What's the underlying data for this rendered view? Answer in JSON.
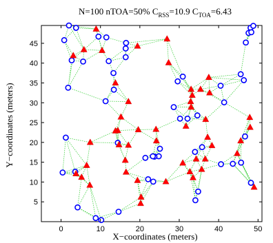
{
  "chart_data": {
    "type": "scatter",
    "title": {
      "prefix": "N=100 nTOA=50% C",
      "sub1": "RSS",
      "mid": "=10.9 C",
      "sub2": "TOA",
      "suffix": "=6.43"
    },
    "xlabel": "X−coordinates (meters)",
    "ylabel": "Y−coordinates (meters)",
    "xlim": [
      -5,
      51
    ],
    "ylim": [
      0,
      49.5
    ],
    "xticks": [
      0,
      10,
      20,
      30,
      40,
      50
    ],
    "yticks": [
      5,
      10,
      15,
      20,
      25,
      30,
      35,
      40,
      45
    ],
    "grid": false,
    "colors": {
      "unknown": "#0000ff",
      "anchor": "#ff0000",
      "edge": "#33cc33"
    },
    "series": [
      {
        "marker": "circle",
        "points": [
          [
            2,
            49.5
          ],
          [
            3.8,
            48.9
          ],
          [
            0.8,
            45.8
          ],
          [
            9.5,
            46.7
          ],
          [
            11.5,
            46.5
          ],
          [
            16.5,
            45.1
          ],
          [
            16.4,
            43.7
          ],
          [
            2.7,
            40.7
          ],
          [
            5.6,
            40.4
          ],
          [
            12.1,
            40.5
          ],
          [
            13.3,
            37.5
          ],
          [
            1.8,
            33.8
          ],
          [
            16.4,
            41.5
          ],
          [
            13.4,
            33.3
          ],
          [
            11.3,
            30.4
          ],
          [
            29.6,
            35.4
          ],
          [
            30.9,
            36.6
          ],
          [
            28.6,
            28.9
          ],
          [
            30.2,
            26
          ],
          [
            32.1,
            26
          ],
          [
            34.6,
            26.8
          ],
          [
            40.5,
            34.3
          ],
          [
            41.4,
            30.1
          ],
          [
            45.6,
            37.2
          ],
          [
            46.4,
            35.7
          ],
          [
            46.9,
            45.2
          ],
          [
            47.6,
            47.6
          ],
          [
            48.1,
            48.9
          ],
          [
            48.8,
            49.4
          ],
          [
            48.3,
            47.8
          ],
          [
            46.7,
            21.5
          ],
          [
            45.7,
            14.9
          ],
          [
            48.2,
            9.8
          ],
          [
            40.6,
            14.5
          ],
          [
            43.6,
            14.6
          ],
          [
            34,
            17.6
          ],
          [
            25.1,
            18.4
          ],
          [
            24.8,
            16.5
          ],
          [
            21.4,
            16.1
          ],
          [
            22.1,
            10.7
          ],
          [
            23.4,
            10.1
          ],
          [
            14.4,
            19.9
          ],
          [
            1.2,
            21.2
          ],
          [
            0.4,
            12.4
          ],
          [
            3.6,
            12.6
          ],
          [
            4.2,
            3.6
          ],
          [
            8.8,
            0.9
          ],
          [
            10.2,
            0.4
          ],
          [
            14.6,
            2.5
          ],
          [
            34.1,
            5.4
          ],
          [
            34.8,
            7.6
          ],
          [
            23.7,
            16.4
          ],
          [
            35.8,
            18.8
          ],
          [
            23.3,
            16.5
          ]
        ]
      },
      {
        "marker": "triangle",
        "points": [
          [
            8.9,
            48.6
          ],
          [
            5.8,
            43.4
          ],
          [
            10.4,
            43.2
          ],
          [
            3.1,
            41.9
          ],
          [
            19.4,
            44.3
          ],
          [
            26.9,
            46.1
          ],
          [
            27.3,
            40.1
          ],
          [
            13.8,
            35
          ],
          [
            14.4,
            23
          ],
          [
            13.8,
            22.9
          ],
          [
            14.7,
            19.4
          ],
          [
            17.1,
            19.3
          ],
          [
            7.4,
            20
          ],
          [
            6.5,
            14.2
          ],
          [
            3.8,
            12.1
          ],
          [
            5.2,
            11.2
          ],
          [
            7.3,
            9.2
          ],
          [
            16.5,
            12.5
          ],
          [
            20.3,
            6.2
          ],
          [
            20.2,
            4.6
          ],
          [
            19.4,
            10.4
          ],
          [
            26.6,
            10.1
          ],
          [
            24.1,
            23.3
          ],
          [
            24.2,
            20.4
          ],
          [
            33,
            33.4
          ],
          [
            33.3,
            31.9
          ],
          [
            32.9,
            30.3
          ],
          [
            33,
            28.9
          ],
          [
            37.5,
            36.4
          ],
          [
            37.7,
            32.5
          ],
          [
            36.7,
            25.8
          ],
          [
            31.7,
            24.1
          ],
          [
            37.2,
            21.3
          ],
          [
            38.3,
            19.2
          ],
          [
            34.3,
            15.8
          ],
          [
            36.6,
            15.8
          ],
          [
            30.9,
            14.8
          ],
          [
            32.7,
            12.6
          ],
          [
            33.5,
            11.1
          ],
          [
            35.7,
            13.2
          ],
          [
            44.7,
            17.2
          ],
          [
            45.6,
            20.4
          ],
          [
            47.9,
            26.3
          ],
          [
            48,
            23.8
          ],
          [
            49,
            8.7
          ],
          [
            16.3,
            15.5
          ],
          [
            19.6,
            23.2
          ],
          [
            15.2,
            26.4
          ],
          [
            17.1,
            30.3
          ],
          [
            35.4,
            33.4
          ]
        ]
      }
    ]
  }
}
